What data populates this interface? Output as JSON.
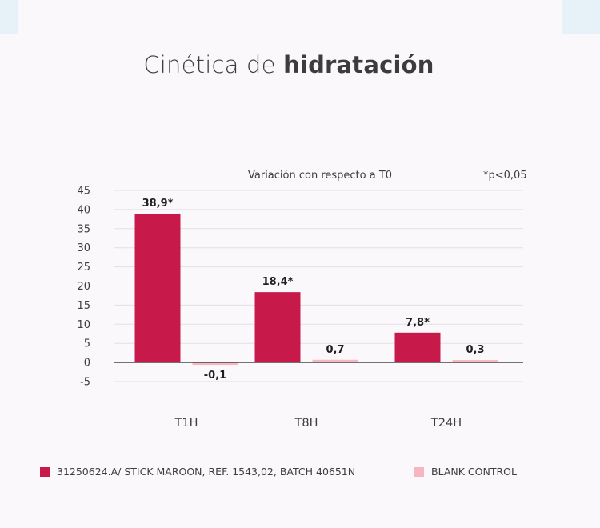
{
  "title": {
    "light": "Cinética de",
    "bold": "hidratación"
  },
  "subtitle": "Variación con respecto a T0",
  "note": "*p<0,05",
  "legend": [
    {
      "label": "31250624.A/ STICK MAROON, REF. 1543,02, BATCH 40651N",
      "color": "#c8194b"
    },
    {
      "label": "BLANK CONTROL",
      "color": "#f6b7c1"
    }
  ],
  "chart_data": {
    "type": "bar",
    "categories": [
      "T1H",
      "T8H",
      "T24H"
    ],
    "series": [
      {
        "name": "31250624.A/ STICK MAROON, REF. 1543,02, BATCH 40651N",
        "values": [
          38.9,
          18.4,
          7.8
        ],
        "labels": [
          "38,9*",
          "18,4*",
          "7,8*"
        ],
        "color": "#c8194b"
      },
      {
        "name": "BLANK CONTROL",
        "values": [
          -0.1,
          0.7,
          0.3
        ],
        "labels": [
          "-0,1",
          "0,7",
          "0,3"
        ],
        "color": "#f6b7c1"
      }
    ],
    "ylim": [
      -5,
      45
    ],
    "yticks": [
      45,
      40,
      35,
      30,
      25,
      20,
      15,
      10,
      5,
      0,
      -5
    ],
    "grid": true
  }
}
